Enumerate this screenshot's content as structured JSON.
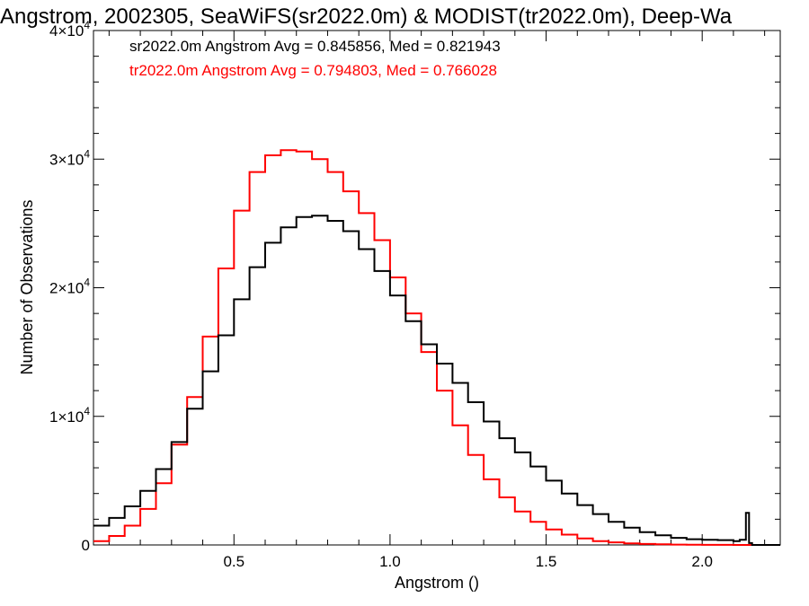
{
  "chart_data": {
    "type": "line",
    "title": "Angstrom, 2002305, SeaWiFS(sr2022.0m) & MODIST(tr2022.0m), Deep-Wa",
    "xlabel": "Angstrom ()",
    "ylabel": "Number of Observations",
    "xlim": [
      0.05,
      2.25
    ],
    "ylim": [
      0,
      40000
    ],
    "x_ticks": [
      0.5,
      1.0,
      1.5,
      2.0
    ],
    "x_tick_labels": [
      "0.5",
      "1.0",
      "1.5",
      "2.0"
    ],
    "y_ticks": [
      0,
      10000,
      20000,
      30000,
      40000
    ],
    "y_tick_labels": [
      {
        "base": "0",
        "exp": ""
      },
      {
        "base": "1×10",
        "exp": "4"
      },
      {
        "base": "2×10",
        "exp": "4"
      },
      {
        "base": "3×10",
        "exp": "4"
      },
      {
        "base": "4×10",
        "exp": "4"
      }
    ],
    "step": true,
    "grid": false,
    "legend": "top-left",
    "series": [
      {
        "name": "sr2022.0m Angstrom Avg = 0.845856, Med = 0.821943",
        "color": "#000000",
        "x": [
          0.05,
          0.1,
          0.15,
          0.2,
          0.25,
          0.3,
          0.35,
          0.4,
          0.45,
          0.5,
          0.55,
          0.6,
          0.65,
          0.7,
          0.75,
          0.8,
          0.85,
          0.9,
          0.95,
          1.0,
          1.05,
          1.1,
          1.15,
          1.2,
          1.25,
          1.3,
          1.35,
          1.4,
          1.45,
          1.5,
          1.55,
          1.6,
          1.65,
          1.7,
          1.75,
          1.8,
          1.85,
          1.9,
          1.95,
          2.0,
          2.05,
          2.1,
          2.12,
          2.14,
          2.15,
          2.16,
          2.25
        ],
        "y": [
          1500,
          2100,
          3000,
          4200,
          5900,
          8000,
          10600,
          13500,
          16300,
          19100,
          21600,
          23500,
          24700,
          25500,
          25600,
          25200,
          24400,
          23000,
          21300,
          19400,
          17400,
          15600,
          14100,
          12600,
          11100,
          9600,
          8300,
          7200,
          6100,
          5000,
          4000,
          3100,
          2400,
          1800,
          1350,
          1000,
          750,
          550,
          450,
          400,
          380,
          300,
          400,
          2500,
          150,
          0,
          0
        ]
      },
      {
        "name": "tr2022.0m Angstrom Avg = 0.794803, Med = 0.766028",
        "color": "#ff0000",
        "x": [
          0.05,
          0.1,
          0.15,
          0.2,
          0.25,
          0.3,
          0.35,
          0.4,
          0.45,
          0.5,
          0.55,
          0.6,
          0.65,
          0.7,
          0.75,
          0.8,
          0.85,
          0.9,
          0.95,
          1.0,
          1.05,
          1.1,
          1.15,
          1.2,
          1.25,
          1.3,
          1.35,
          1.4,
          1.45,
          1.5,
          1.55,
          1.6,
          1.65,
          1.7,
          1.75,
          1.8,
          1.85,
          1.9,
          1.95,
          2.0,
          2.05,
          2.1,
          2.15,
          2.2,
          2.25
        ],
        "y": [
          300,
          700,
          1500,
          2800,
          4800,
          7800,
          11500,
          16200,
          21500,
          26000,
          29000,
          30300,
          30700,
          30600,
          30000,
          29000,
          27500,
          25800,
          23700,
          20800,
          18000,
          15000,
          12000,
          9300,
          7000,
          5100,
          3700,
          2600,
          1800,
          1200,
          800,
          500,
          300,
          200,
          120,
          80,
          50,
          30,
          20,
          10,
          5,
          3,
          2,
          1,
          0
        ]
      }
    ]
  }
}
